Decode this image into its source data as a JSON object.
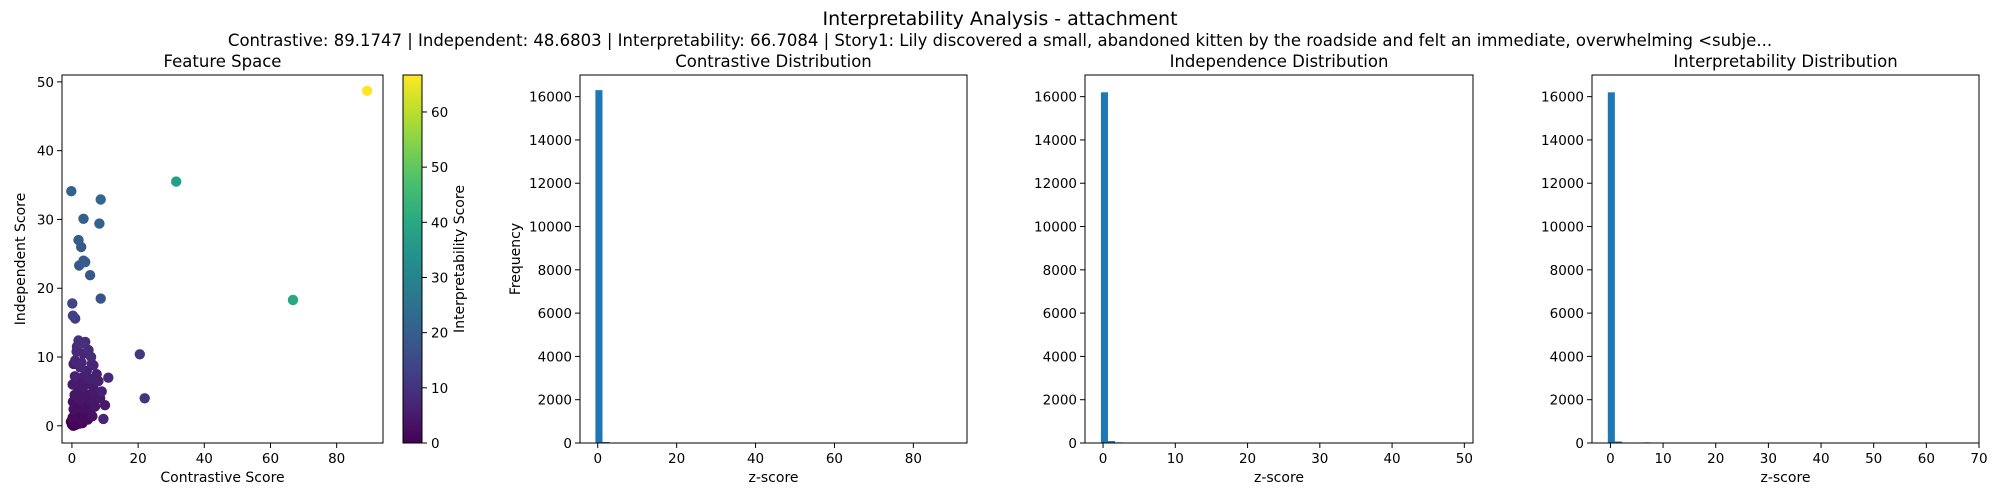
{
  "figure": {
    "title": "Interpretability Analysis - attachment",
    "subtitle": "Contrastive: 89.1747 | Independent: 48.6803 | Interpretability: 66.7084 | Story1: Lily discovered a small, abandoned kitten by the roadside and felt an immediate, overwhelming <subje..."
  },
  "chart_data": [
    {
      "type": "scatter",
      "title": "Feature Space",
      "xlabel": "Contrastive Score",
      "ylabel": "Independent Score",
      "xlim": [
        -3,
        94
      ],
      "ylim": [
        -2.5,
        51
      ],
      "xticks": [
        0,
        20,
        40,
        60,
        80
      ],
      "yticks": [
        0,
        10,
        20,
        30,
        40,
        50
      ],
      "colormap": "viridis",
      "colorbar": {
        "label": "Interpretability Score",
        "range": [
          0,
          66.7
        ],
        "ticks": [
          0,
          10,
          20,
          30,
          40,
          50,
          60
        ]
      },
      "points": [
        {
          "x": 89.2,
          "y": 48.7,
          "c": 66.7
        },
        {
          "x": 31.5,
          "y": 35.5,
          "c": 38
        },
        {
          "x": 66.8,
          "y": 18.3,
          "c": 40
        },
        {
          "x": -0.2,
          "y": 34.1,
          "c": 21
        },
        {
          "x": 8.7,
          "y": 32.9,
          "c": 22
        },
        {
          "x": 8.3,
          "y": 29.4,
          "c": 21
        },
        {
          "x": 3.5,
          "y": 30.1,
          "c": 20
        },
        {
          "x": 2.0,
          "y": 27.0,
          "c": 19
        },
        {
          "x": 2.8,
          "y": 26.0,
          "c": 18
        },
        {
          "x": 3.5,
          "y": 24.0,
          "c": 19
        },
        {
          "x": 4.0,
          "y": 23.8,
          "c": 19
        },
        {
          "x": 2.2,
          "y": 23.3,
          "c": 18
        },
        {
          "x": 5.5,
          "y": 21.9,
          "c": 18
        },
        {
          "x": 8.7,
          "y": 18.5,
          "c": 17
        },
        {
          "x": 0.1,
          "y": 17.8,
          "c": 14
        },
        {
          "x": 0.3,
          "y": 16.0,
          "c": 13
        },
        {
          "x": 1.0,
          "y": 15.6,
          "c": 12
        },
        {
          "x": 20.5,
          "y": 10.4,
          "c": 11
        },
        {
          "x": 22.0,
          "y": 4.0,
          "c": 10
        },
        {
          "x": 11.0,
          "y": 7.0,
          "c": 8
        },
        {
          "x": 9.5,
          "y": 1.0,
          "c": 7
        },
        {
          "x": 2.0,
          "y": 12.4,
          "c": 9
        },
        {
          "x": 3.0,
          "y": 12.0,
          "c": 9
        },
        {
          "x": 4.0,
          "y": 12.2,
          "c": 8
        },
        {
          "x": 1.5,
          "y": 11.5,
          "c": 8
        },
        {
          "x": 5.0,
          "y": 11.0,
          "c": 8
        },
        {
          "x": 3.5,
          "y": 10.5,
          "c": 7
        },
        {
          "x": 6.0,
          "y": 9.0,
          "c": 7
        },
        {
          "x": 6.5,
          "y": 8.8,
          "c": 7
        },
        {
          "x": 1.0,
          "y": 9.5,
          "c": 7
        },
        {
          "x": 0.5,
          "y": 9.0,
          "c": 6
        },
        {
          "x": 2.5,
          "y": 8.5,
          "c": 7
        },
        {
          "x": 4.5,
          "y": 8.0,
          "c": 6
        },
        {
          "x": 7.5,
          "y": 7.5,
          "c": 6
        },
        {
          "x": 8.0,
          "y": 6.5,
          "c": 6
        },
        {
          "x": 5.5,
          "y": 6.8,
          "c": 6
        },
        {
          "x": 3.0,
          "y": 7.0,
          "c": 5
        },
        {
          "x": 1.5,
          "y": 6.5,
          "c": 5
        },
        {
          "x": 0.2,
          "y": 6.0,
          "c": 5
        },
        {
          "x": 4.0,
          "y": 6.0,
          "c": 5
        },
        {
          "x": 6.5,
          "y": 5.5,
          "c": 5
        },
        {
          "x": 7.0,
          "y": 4.8,
          "c": 5
        },
        {
          "x": 2.0,
          "y": 5.2,
          "c": 4
        },
        {
          "x": 5.0,
          "y": 4.5,
          "c": 4
        },
        {
          "x": 3.5,
          "y": 4.2,
          "c": 4
        },
        {
          "x": 0.8,
          "y": 4.5,
          "c": 4
        },
        {
          "x": 8.5,
          "y": 4.0,
          "c": 5
        },
        {
          "x": 6.0,
          "y": 3.5,
          "c": 4
        },
        {
          "x": 2.5,
          "y": 3.8,
          "c": 4
        },
        {
          "x": 1.2,
          "y": 3.2,
          "c": 3
        },
        {
          "x": 4.5,
          "y": 3.0,
          "c": 3
        },
        {
          "x": 7.0,
          "y": 2.8,
          "c": 4
        },
        {
          "x": 3.0,
          "y": 2.5,
          "c": 3
        },
        {
          "x": 0.5,
          "y": 2.4,
          "c": 3
        },
        {
          "x": 5.5,
          "y": 2.2,
          "c": 3
        },
        {
          "x": 2.0,
          "y": 2.0,
          "c": 2
        },
        {
          "x": 1.0,
          "y": 1.6,
          "c": 2
        },
        {
          "x": 3.8,
          "y": 1.5,
          "c": 2
        },
        {
          "x": 6.2,
          "y": 1.4,
          "c": 3
        },
        {
          "x": 0.2,
          "y": 1.2,
          "c": 2
        },
        {
          "x": 2.6,
          "y": 1.0,
          "c": 2
        },
        {
          "x": 4.8,
          "y": 0.9,
          "c": 2
        },
        {
          "x": 1.5,
          "y": 0.7,
          "c": 1
        },
        {
          "x": 0.6,
          "y": 0.5,
          "c": 1
        },
        {
          "x": 3.2,
          "y": 0.4,
          "c": 1
        },
        {
          "x": 0.0,
          "y": 0.2,
          "c": 0
        },
        {
          "x": 1.0,
          "y": 0.1,
          "c": 0
        },
        {
          "x": 2.2,
          "y": 0.3,
          "c": 1
        },
        {
          "x": 0.4,
          "y": 0.0,
          "c": 0
        },
        {
          "x": -0.3,
          "y": 0.6,
          "c": 0
        },
        {
          "x": 1.8,
          "y": 4.0,
          "c": 4
        },
        {
          "x": 3.4,
          "y": 5.6,
          "c": 5
        },
        {
          "x": 0.9,
          "y": 7.2,
          "c": 6
        },
        {
          "x": 2.9,
          "y": 9.2,
          "c": 7
        },
        {
          "x": 1.4,
          "y": 10.8,
          "c": 8
        },
        {
          "x": 0.3,
          "y": 3.5,
          "c": 3
        },
        {
          "x": 4.2,
          "y": 7.4,
          "c": 6
        },
        {
          "x": 5.8,
          "y": 10.0,
          "c": 8
        },
        {
          "x": 9.0,
          "y": 5.0,
          "c": 6
        },
        {
          "x": 10.0,
          "y": 3.0,
          "c": 5
        }
      ]
    },
    {
      "type": "bar",
      "title": "Contrastive Distribution",
      "xlabel": "z-score",
      "ylabel": "Frequency",
      "xlim": [
        -4.5,
        93.6
      ],
      "ylim": [
        0,
        17000
      ],
      "xticks": [
        0,
        20,
        40,
        60,
        80
      ],
      "yticks": [
        0,
        2000,
        4000,
        6000,
        8000,
        10000,
        12000,
        14000,
        16000
      ],
      "bin_start": -0.6,
      "bin_width": 1.8,
      "counts": [
        16300,
        45,
        12,
        6,
        3,
        2,
        2,
        1,
        1,
        1
      ]
    },
    {
      "type": "bar",
      "title": "Independence Distribution",
      "xlabel": "z-score",
      "ylabel": "",
      "xlim": [
        -2.5,
        51.2
      ],
      "ylim": [
        0,
        17000
      ],
      "xticks": [
        0,
        10,
        20,
        30,
        40,
        50
      ],
      "yticks": [
        0,
        2000,
        4000,
        6000,
        8000,
        10000,
        12000,
        14000,
        16000
      ],
      "bin_start": -0.3,
      "bin_width": 0.98,
      "counts": [
        16200,
        90,
        30,
        15,
        8,
        5,
        3,
        2,
        1,
        1
      ]
    },
    {
      "type": "bar",
      "title": "Interpretability Distribution",
      "xlabel": "z-score",
      "ylabel": "",
      "xlim": [
        -3.5,
        70
      ],
      "ylim": [
        0,
        17000
      ],
      "xticks": [
        0,
        10,
        20,
        30,
        40,
        50,
        60,
        70
      ],
      "yticks": [
        0,
        2000,
        4000,
        6000,
        8000,
        10000,
        12000,
        14000,
        16000
      ],
      "bin_start": -0.5,
      "bin_width": 1.34,
      "counts": [
        16200,
        70,
        25,
        10,
        5,
        30,
        4,
        2,
        1,
        1
      ]
    }
  ]
}
